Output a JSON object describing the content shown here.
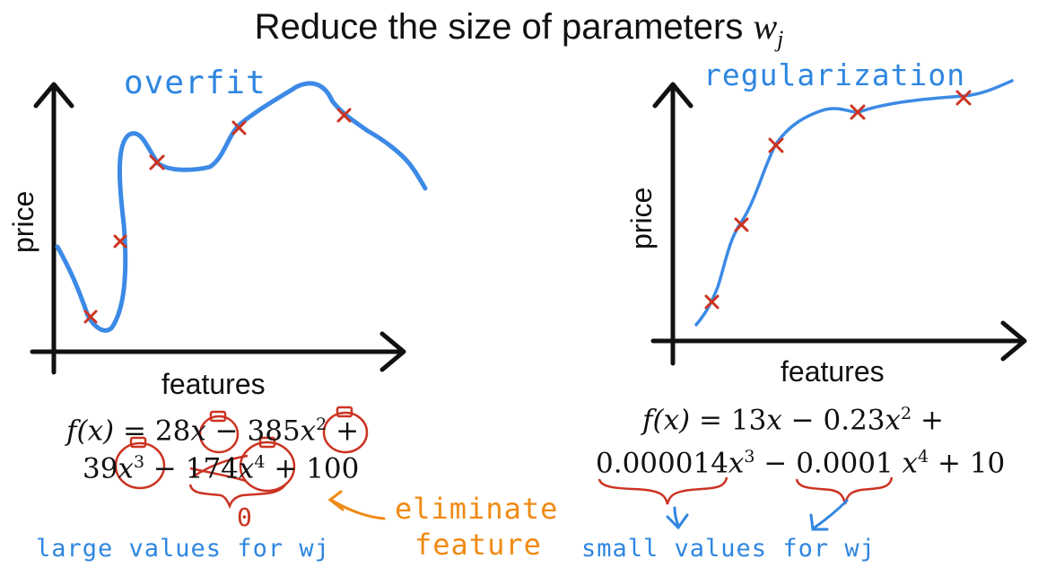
{
  "title": {
    "text": "Reduce the size of parameters",
    "symbol": "w",
    "subscript": "j"
  },
  "left_panel": {
    "annotation": "overfit",
    "xlabel": "features",
    "ylabel": "price",
    "equation": {
      "line1": {
        "f": "f(x)",
        "eq": "=",
        "c1": "28",
        "t1": "x",
        "op1": "−",
        "c2": "385",
        "t2": "x",
        "p2": "2",
        "op2": "+"
      },
      "line2": {
        "c3": "39",
        "t3": "x",
        "p3": "3",
        "op3": "−",
        "c4": "174",
        "t4": "x",
        "p4": "4",
        "op4": "+",
        "c5": "100"
      }
    },
    "crossed_value_replacement": "0",
    "eliminate_note": [
      "eliminate",
      "feature"
    ],
    "bottom_note": "large values for wj"
  },
  "right_panel": {
    "annotation": "regularization",
    "xlabel": "features",
    "ylabel": "price",
    "equation": {
      "line1": {
        "f": "f(x)",
        "eq": "=",
        "c1": "13",
        "t1": "x",
        "op1": "−",
        "c2": "0.23",
        "t2": "x",
        "p2": "2",
        "op2": "+"
      },
      "line2": {
        "c3": "0.000014",
        "t3": "x",
        "p3": "3",
        "op3": "−",
        "c4": "0.0001",
        "t4": "x",
        "p4": "4",
        "op4": "+",
        "c5": "10"
      }
    },
    "bottom_note": "small values for wj"
  },
  "colors": {
    "curve": "#3c8ae6",
    "marker": "#cc3322",
    "note_blue": "#2f86e0",
    "note_orange": "#f08a14",
    "ink": "#111111"
  }
}
